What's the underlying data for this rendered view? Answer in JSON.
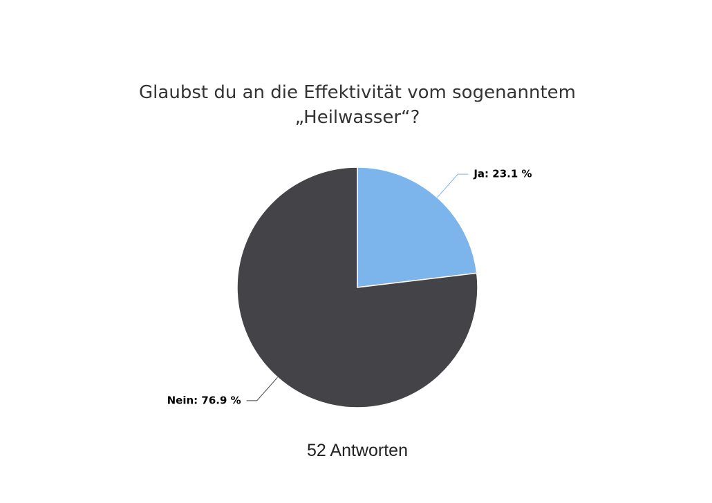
{
  "chart_data": {
    "type": "pie",
    "title": [
      "Glaubst du an die Effektivität vom sogenanntem",
      "„Heilwasser“?"
    ],
    "categories": [
      "Ja",
      "Nein"
    ],
    "values": [
      23.1,
      76.9
    ],
    "value_labels": [
      "Ja: 23.1 %",
      "Nein: 76.9 %"
    ],
    "colors": [
      "#7cb5ec",
      "#434348"
    ],
    "footer": "52 Antworten"
  }
}
